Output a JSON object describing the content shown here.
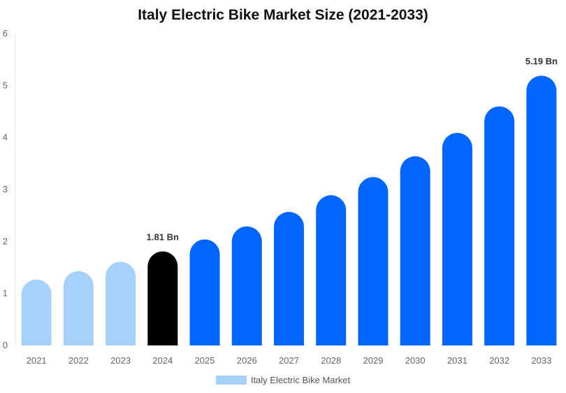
{
  "chart_data": {
    "type": "bar",
    "title": "Italy Electric Bike Market Size (2021-2033)",
    "xlabel": "",
    "ylabel": "",
    "categories": [
      "2021",
      "2022",
      "2023",
      "2024",
      "2025",
      "2026",
      "2027",
      "2028",
      "2029",
      "2030",
      "2031",
      "2032",
      "2033"
    ],
    "series": [
      {
        "name": "Italy Electric Bike Market",
        "values": [
          1.27,
          1.43,
          1.61,
          1.81,
          2.04,
          2.29,
          2.57,
          2.89,
          3.24,
          3.64,
          4.09,
          4.6,
          5.19
        ]
      }
    ],
    "value_labels": [
      {
        "category": "2024",
        "text": "1.81 Bn"
      },
      {
        "category": "2033",
        "text": "5.19 Bn"
      }
    ],
    "ylim": [
      0,
      6
    ],
    "yticks": [
      0,
      1,
      2,
      3,
      4,
      5,
      6
    ],
    "grid": false,
    "legend": "bottom-center",
    "colors": {
      "historical": "#a6d1fb",
      "base_year": "#000000",
      "forecast": "#0066ff",
      "legend_swatch": "#a6d1fb"
    },
    "base_year_index": 3
  }
}
